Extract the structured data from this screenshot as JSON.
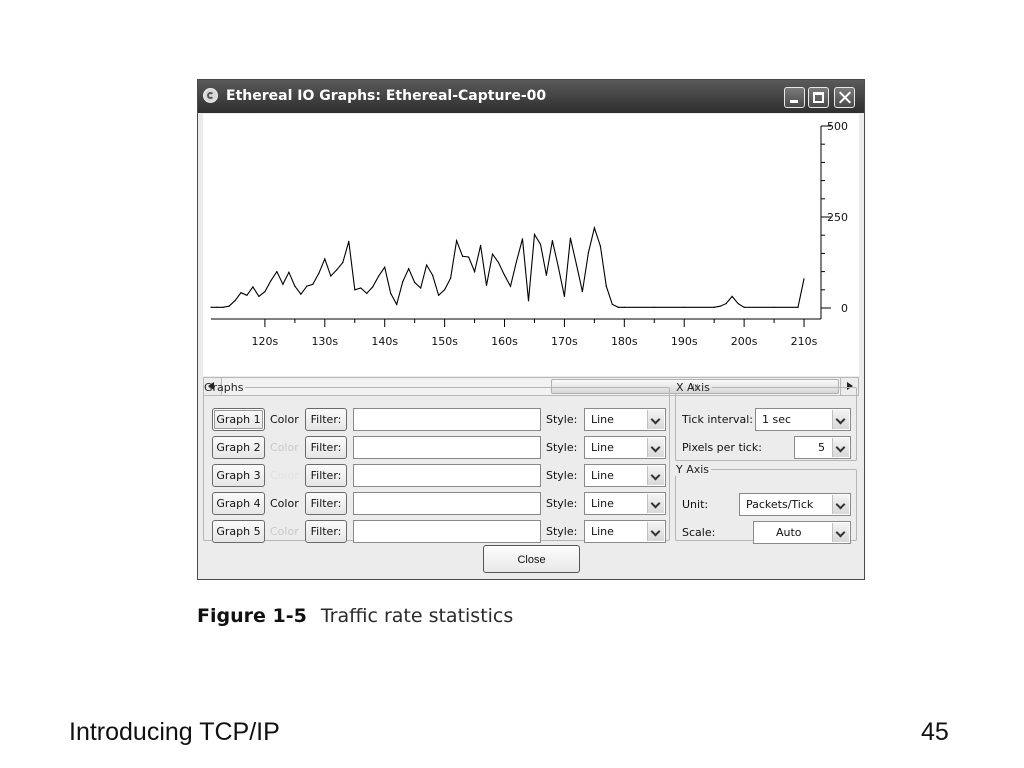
{
  "window": {
    "title": "Ethereal IO Graphs: Ethereal-Capture-00",
    "icon": "ethereal-app-icon",
    "buttons": [
      "minimize-icon",
      "maximize-icon",
      "close-icon"
    ]
  },
  "chart_data": {
    "type": "line",
    "title": "",
    "xlabel": "",
    "ylabel": "",
    "x_ticks": [
      "120s",
      "130s",
      "140s",
      "150s",
      "160s",
      "170s",
      "180s",
      "190s",
      "200s",
      "210s"
    ],
    "y_ticks": [
      "500",
      "250",
      "0"
    ],
    "xlim": [
      111,
      212
    ],
    "ylim": [
      0,
      500
    ],
    "grid": false,
    "line_color": "#000000",
    "series": [
      {
        "x": [
          111,
          112,
          113,
          114,
          115,
          116,
          117,
          118,
          119,
          120,
          121,
          122,
          123,
          124,
          125,
          126,
          127,
          128,
          129,
          130,
          131,
          132,
          133,
          134,
          135,
          136,
          137,
          138,
          139,
          140,
          141,
          142,
          143,
          144,
          145,
          146,
          147,
          148,
          149,
          150,
          151,
          152,
          153,
          154,
          155,
          156,
          157,
          158,
          159,
          160,
          161,
          162,
          163,
          164,
          165,
          166,
          167,
          168,
          169,
          170,
          171,
          172,
          173,
          174,
          175,
          176,
          177,
          178,
          179,
          180,
          185,
          190,
          195,
          196,
          197,
          198,
          199,
          200,
          205,
          209,
          210
        ],
        "y": [
          2,
          2,
          2,
          5,
          20,
          42,
          35,
          58,
          32,
          45,
          75,
          100,
          65,
          98,
          60,
          38,
          60,
          65,
          95,
          135,
          88,
          105,
          125,
          183,
          50,
          55,
          40,
          58,
          88,
          112,
          40,
          10,
          72,
          108,
          70,
          55,
          118,
          90,
          35,
          50,
          82,
          185,
          142,
          140,
          100,
          172,
          62,
          148,
          125,
          90,
          60,
          128,
          190,
          20,
          202,
          175,
          90,
          185,
          112,
          32,
          192,
          120,
          45,
          152,
          220,
          170,
          60,
          10,
          2,
          2,
          2,
          2,
          2,
          5,
          12,
          32,
          12,
          2,
          2,
          2,
          80
        ]
      }
    ]
  },
  "scrollbar": {
    "left_arrow": "chevron-left-icon",
    "right_arrow": "chevron-right-icon"
  },
  "graphs_panel": {
    "legend": "Graphs",
    "color_label": "Color",
    "filter_label": "Filter:",
    "style_label": "Style:",
    "rows": [
      {
        "button": "Graph 1",
        "style": "Line",
        "filter": ""
      },
      {
        "button": "Graph 2",
        "style": "Line",
        "filter": ""
      },
      {
        "button": "Graph 3",
        "style": "Line",
        "filter": ""
      },
      {
        "button": "Graph 4",
        "style": "Line",
        "filter": ""
      },
      {
        "button": "Graph 5",
        "style": "Line",
        "filter": ""
      }
    ]
  },
  "x_axis_panel": {
    "legend": "X Axis",
    "tick_interval_label": "Tick interval:",
    "tick_interval_value": "1 sec",
    "pixels_per_tick_label": "Pixels per tick:",
    "pixels_per_tick_value": "5"
  },
  "y_axis_panel": {
    "legend": "Y Axis",
    "unit_label": "Unit:",
    "unit_value": "Packets/Tick",
    "scale_label": "Scale:",
    "scale_value": "Auto"
  },
  "close_button": "Close",
  "caption": {
    "label": "Figure 1-5",
    "text": "Traffic rate statistics"
  },
  "footer": {
    "title": "Introducing TCP/IP",
    "page_number": "45"
  }
}
